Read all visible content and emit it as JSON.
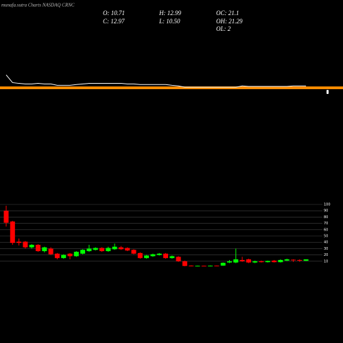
{
  "header": {
    "title": "munafa.sutra Charts NASDAQ CRNC",
    "stats": [
      "O: 10.71",
      "H: 12.99",
      "OC: 21.1",
      "C: 12.97",
      "L: 10.50",
      "OH: 21.29",
      "OL: 2"
    ]
  },
  "chart_data": [
    {
      "type": "line",
      "color": "#ffffff",
      "ylim": [
        0,
        100
      ],
      "values": [
        67,
        27,
        23,
        20,
        20,
        23,
        20,
        20,
        13,
        13,
        13,
        17,
        20,
        23,
        23,
        23,
        23,
        23,
        23,
        20,
        20,
        17,
        17,
        17,
        17,
        17,
        13,
        10,
        3,
        3,
        3,
        3,
        3,
        3,
        3,
        3,
        3,
        10,
        7,
        7,
        7,
        7,
        7,
        7,
        7,
        10,
        10,
        10
      ]
    },
    {
      "type": "candlestick",
      "up_color": "#00ff00",
      "down_color": "#ff0000",
      "grid": true,
      "ylim": [
        0,
        100
      ],
      "yticks": [
        10,
        20,
        30,
        40,
        50,
        60,
        70,
        80,
        90,
        100
      ],
      "open": [
        90,
        73,
        41,
        41,
        32,
        36,
        26,
        30,
        22,
        15,
        22,
        18,
        22,
        26,
        28,
        31,
        26,
        29,
        32,
        31,
        28,
        23,
        15,
        18,
        20,
        22,
        15,
        17,
        10,
        3,
        2.2,
        2.8,
        2.4,
        3,
        3,
        8,
        8,
        12,
        13,
        8,
        10,
        8.5,
        11,
        8.5,
        11,
        12.5,
        12,
        10.71
      ],
      "high": [
        98,
        74,
        46,
        42,
        37,
        37,
        33,
        32,
        23,
        21,
        23,
        26,
        29,
        36,
        32,
        32,
        33,
        38,
        34,
        32,
        29,
        24,
        20,
        22,
        23,
        23,
        19,
        18,
        11,
        3.5,
        3,
        3,
        3.2,
        3.2,
        8,
        12,
        30,
        17,
        14,
        11,
        11,
        11,
        12,
        13,
        14,
        13,
        13,
        12.99
      ],
      "low": [
        65,
        36,
        35,
        30,
        30,
        25,
        24,
        20,
        13,
        14,
        13,
        17,
        21,
        25,
        27,
        25,
        25,
        28,
        28,
        26,
        21,
        14,
        14,
        17,
        19,
        14,
        14,
        9,
        2,
        2,
        2,
        2.2,
        2.2,
        2.3,
        2.8,
        7,
        7,
        9,
        7,
        7,
        8,
        8,
        8,
        8,
        10.5,
        9,
        9,
        10.5
      ],
      "close": [
        71,
        39,
        39,
        32,
        36,
        26,
        32,
        21,
        15,
        20,
        18,
        25,
        28,
        30,
        31,
        26,
        31,
        33,
        29,
        27,
        22,
        15,
        19,
        21,
        22,
        15,
        18,
        10,
        2.5,
        2.3,
        2.8,
        2.4,
        2.9,
        2.5,
        7.5,
        10,
        13,
        10,
        8,
        10,
        8.5,
        10.5,
        8.5,
        12,
        13,
        11.5,
        11,
        12.97
      ]
    }
  ]
}
